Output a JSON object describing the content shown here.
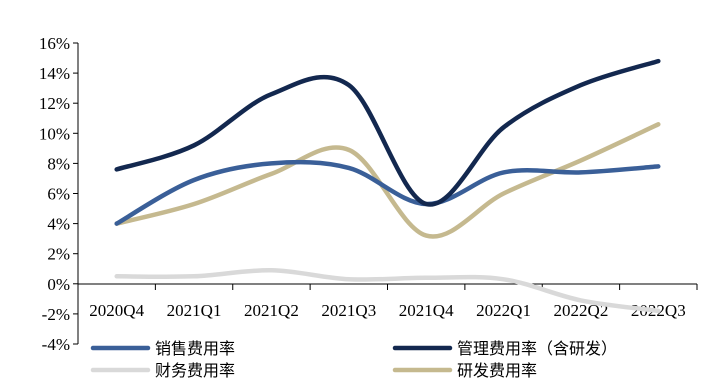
{
  "chart_data": {
    "type": "line",
    "categories": [
      "2020Q4",
      "2021Q1",
      "2021Q2",
      "2021Q3",
      "2021Q4",
      "2022Q1",
      "2022Q2",
      "2022Q3"
    ],
    "y_ticks": [
      "16%",
      "14%",
      "12%",
      "10%",
      "8%",
      "6%",
      "4%",
      "2%",
      "0%",
      "-2%",
      "-4%"
    ],
    "ylim": [
      -4,
      16
    ],
    "y_unit": "%",
    "grid": false,
    "legend_position": "bottom",
    "series": [
      {
        "name": "销售费用率",
        "color": "#3a5f98",
        "values": [
          4.0,
          6.9,
          8.0,
          7.7,
          5.3,
          7.4,
          7.4,
          7.8
        ]
      },
      {
        "name": "管理费用率（含研发）",
        "color": "#13284f",
        "values": [
          7.6,
          9.2,
          12.6,
          13.2,
          5.3,
          10.4,
          13.2,
          14.8
        ]
      },
      {
        "name": "财务费用率",
        "color": "#d9d9d9",
        "values": [
          0.5,
          0.5,
          0.9,
          0.3,
          0.4,
          0.3,
          -1.1,
          -1.8
        ]
      },
      {
        "name": "研发费用率",
        "color": "#c5b98f",
        "values": [
          4.0,
          5.3,
          7.3,
          8.9,
          3.2,
          6.0,
          8.2,
          10.6
        ]
      }
    ]
  }
}
